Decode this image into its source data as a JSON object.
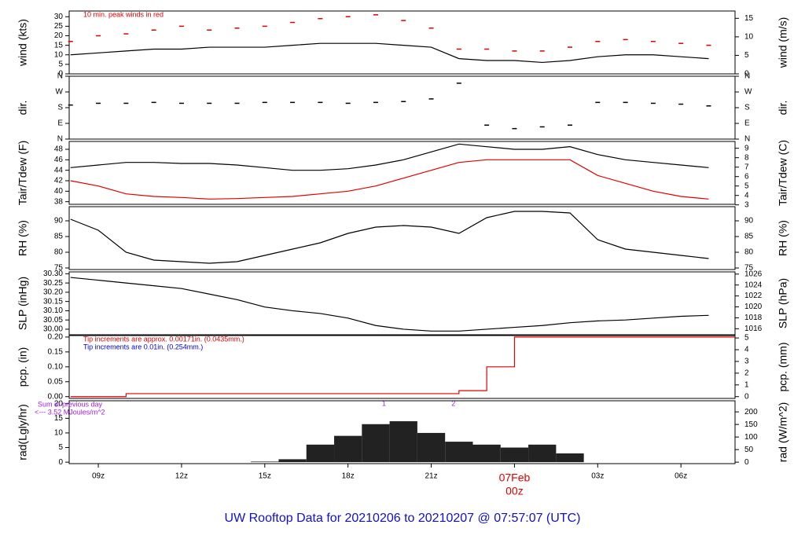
{
  "chart_data": {
    "type": "line",
    "title": "UW Rooftop Data for 20210206  to  20210207 @ 07:57:07  (UTC)",
    "x": [
      8,
      9,
      10,
      11,
      12,
      13,
      14,
      15,
      16,
      17,
      18,
      19,
      20,
      21,
      22,
      23,
      24,
      25,
      26,
      27,
      28,
      29,
      30,
      31
    ],
    "xlim": [
      7.95,
      31.95
    ],
    "xticks": [
      {
        "value": 9,
        "label": "09z"
      },
      {
        "value": 12,
        "label": "12z"
      },
      {
        "value": 15,
        "label": "15z"
      },
      {
        "value": 18,
        "label": "18z"
      },
      {
        "value": 21,
        "label": "21z"
      },
      {
        "value": 24,
        "label": "00z"
      },
      {
        "value": 27,
        "label": "03z"
      },
      {
        "value": 30,
        "label": "06z"
      }
    ],
    "day_label": {
      "value": 24,
      "label": "07Feb"
    },
    "panels": [
      {
        "ylabel": "wind (kts)",
        "y2label": "wind (m/s)",
        "annotation": "10 min. peak winds in red",
        "annotation_color": "#e00000",
        "ylim": [
          0,
          33
        ],
        "yticks": [
          0,
          5,
          10,
          15,
          20,
          25,
          30
        ],
        "y2lim": [
          0,
          16.98
        ],
        "y2ticks": [
          0,
          5,
          10,
          15
        ],
        "series": [
          {
            "type": "line",
            "color": "#000000",
            "values": [
              10,
              11,
              12,
              13,
              13,
              14,
              14,
              14,
              15,
              16,
              16,
              16,
              15,
              14,
              8,
              7,
              7,
              6,
              7,
              9,
              10,
              10,
              9,
              8
            ]
          },
          {
            "type": "scatter",
            "color": "#e00000",
            "values": [
              17,
              20,
              21,
              23,
              25,
              23,
              24,
              25,
              27,
              29,
              30,
              31,
              28,
              24,
              13,
              13,
              12,
              12,
              14,
              17,
              18,
              17,
              16,
              15
            ]
          }
        ]
      },
      {
        "ylabel": "dir.",
        "y2label": "dir.",
        "ylim": [
          0,
          360
        ],
        "yticks": [
          {
            "value": 0,
            "label": "N"
          },
          {
            "value": 90,
            "label": "E"
          },
          {
            "value": 180,
            "label": "S"
          },
          {
            "value": 270,
            "label": "W"
          },
          {
            "value": 360,
            "label": "N"
          }
        ],
        "y2lim": [
          0,
          360
        ],
        "y2ticks": [
          {
            "value": 0,
            "label": "N"
          },
          {
            "value": 90,
            "label": "E"
          },
          {
            "value": 180,
            "label": "S"
          },
          {
            "value": 270,
            "label": "W"
          },
          {
            "value": 360,
            "label": "N"
          }
        ],
        "series": [
          {
            "type": "scatter",
            "color": "#000000",
            "values": [
              195,
              205,
              205,
              210,
              205,
              205,
              205,
              210,
              210,
              210,
              205,
              210,
              215,
              230,
              320,
              80,
              60,
              70,
              80,
              210,
              210,
              205,
              200,
              190
            ]
          }
        ]
      },
      {
        "ylabel": "Tair/Tdew (F)",
        "y2label": "Tair/Tdew (C)",
        "ylim": [
          37.5,
          49.5
        ],
        "yticks": [
          38,
          40,
          42,
          44,
          46,
          48
        ],
        "y2lim": [
          3.06,
          9.72
        ],
        "y2ticks": [
          3,
          4,
          5,
          6,
          7,
          8,
          9
        ],
        "series": [
          {
            "type": "line",
            "color": "#000000",
            "values": [
              44.5,
              45,
              45.5,
              45.5,
              45.3,
              45.3,
              45,
              44.5,
              44,
              44,
              44.3,
              45,
              46,
              47.5,
              49,
              48.5,
              48,
              48,
              48.5,
              47,
              46,
              45.5,
              45,
              44.5
            ]
          },
          {
            "type": "line",
            "color": "#e00000",
            "values": [
              42,
              41,
              39.5,
              39,
              38.8,
              38.5,
              38.6,
              38.8,
              39,
              39.5,
              40,
              41,
              42.5,
              44,
              45.5,
              46,
              46,
              46,
              46,
              43,
              41.5,
              40,
              39,
              38.5
            ]
          }
        ]
      },
      {
        "ylabel": "RH (%)",
        "y2label": "RH (%)",
        "ylim": [
          74.5,
          94.5
        ],
        "yticks": [
          75,
          80,
          85,
          90
        ],
        "y2lim": [
          74.5,
          94.5
        ],
        "y2ticks": [
          75,
          80,
          85,
          90
        ],
        "series": [
          {
            "type": "line",
            "color": "#000000",
            "values": [
              90.5,
              87,
              80,
              77.5,
              77,
              76.5,
              77,
              79,
              81,
              83,
              86,
              88,
              88.5,
              88,
              86,
              91,
              93,
              93,
              92.5,
              84,
              81,
              80,
              79,
              78
            ]
          }
        ]
      },
      {
        "ylabel": "SLP (inHg)",
        "y2label": "SLP (hPa)",
        "ylim": [
          29.97,
          30.31
        ],
        "yticks": [
          {
            "value": 30,
            "label": "30.00"
          },
          30.05,
          {
            "value": 30.1,
            "label": "30.10"
          },
          30.15,
          {
            "value": 30.2,
            "label": "30.20"
          },
          30.25,
          {
            "value": 30.3,
            "label": "30.30"
          }
        ],
        "y2lim": [
          1014.9,
          1026.4
        ],
        "y2ticks": [
          1016,
          1018,
          1020,
          1022,
          1024,
          1026
        ],
        "series": [
          {
            "type": "line",
            "color": "#000000",
            "values": [
              30.28,
              30.265,
              30.25,
              30.235,
              30.22,
              30.19,
              30.16,
              30.12,
              30.1,
              30.085,
              30.06,
              30.02,
              30,
              29.99,
              29.99,
              30,
              30.01,
              30.02,
              30.035,
              30.045,
              30.05,
              30.06,
              30.07,
              30.075
            ]
          }
        ]
      },
      {
        "ylabel": "pcp. (in)",
        "y2label": "pcp. (mm)",
        "annotation": "Tip increments are approx. 0.00171in. (0.0435mm.)",
        "annotation_color": "#e00000",
        "annotation2": "Tip increments are 0.01in. (0.254mm.)",
        "annotation2_color": "#0000e0",
        "ylim": [
          -0.006,
          0.205
        ],
        "yticks": [
          {
            "value": 0,
            "label": "0.00"
          },
          0.05,
          {
            "value": 0.1,
            "label": "0.10"
          },
          0.15,
          {
            "value": 0.2,
            "label": "0.20"
          }
        ],
        "y2lim": [
          -0.152,
          5.207
        ],
        "y2ticks": [
          0,
          1,
          2,
          3,
          4,
          5
        ],
        "series": [
          {
            "type": "step",
            "color": "#e00000",
            "values": [
              0,
              0,
              0.01,
              0.01,
              0.01,
              0.01,
              0.01,
              0.01,
              0.01,
              0.01,
              0.01,
              0.01,
              0.01,
              0.01,
              0.02,
              0.1,
              0.2,
              0.2,
              0.2,
              0.2,
              0.2,
              0.2,
              0.2,
              0.2
            ]
          }
        ]
      },
      {
        "ylabel": "rad(Lgly/hr)",
        "y2label": "rad (W/m^2)",
        "annotation": "Sum of previous day",
        "annotation2": "<--- 3.52 MJoules/m^2",
        "annotation_color": "#a020f0",
        "annotation2_color": "#a020f0",
        "ylim": [
          -0.5,
          21
        ],
        "yticks": [
          0,
          5,
          10,
          15,
          20
        ],
        "y2lim": [
          -5.8,
          244.2
        ],
        "y2ticks": [
          0,
          50,
          100,
          150,
          200
        ],
        "markers": [
          {
            "label": "1",
            "x": 19.3
          },
          {
            "label": "2",
            "x": 21.8
          }
        ],
        "series": [
          {
            "type": "bar",
            "color": "#222222",
            "values": [
              0,
              0,
              0,
              0,
              0,
              0,
              0,
              0.2,
              1,
              6,
              9,
              13,
              14,
              10,
              7,
              6,
              5,
              6,
              3,
              0,
              0,
              0,
              0,
              0
            ]
          }
        ]
      }
    ]
  }
}
